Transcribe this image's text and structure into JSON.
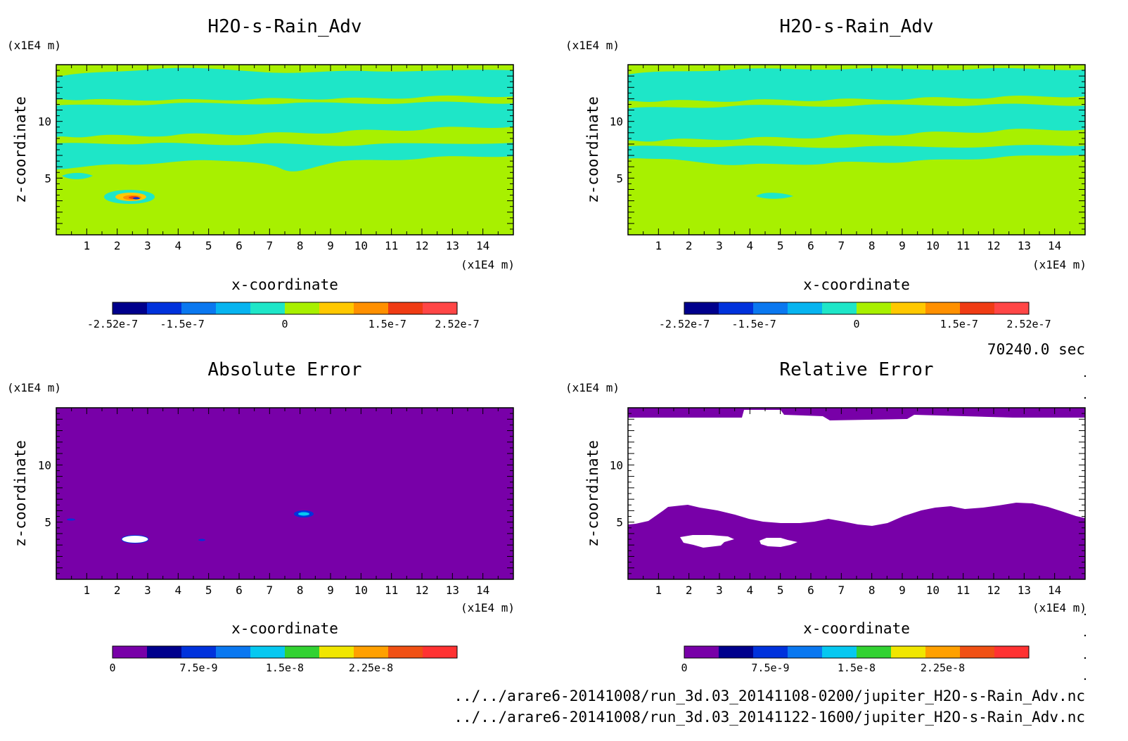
{
  "chart_data": [
    {
      "type": "heatmap",
      "title": "H2O-s-Rain_Adv",
      "xlabel": "x-coordinate",
      "ylabel": "z-coordinate",
      "x_unit": "(x1E4 m)",
      "y_unit": "(x1E4 m)",
      "xlim": [
        0,
        15
      ],
      "ylim": [
        0,
        15
      ],
      "x_ticks": [
        "1",
        "2",
        "3",
        "4",
        "5",
        "6",
        "7",
        "8",
        "9",
        "10",
        "11",
        "12",
        "13",
        "14"
      ],
      "y_ticks": [
        "5",
        "10"
      ],
      "colorbar": {
        "range": [
          -2.52e-07,
          2.52e-07
        ],
        "tick_values": [
          -2.52e-07,
          -1.5e-07,
          0,
          1.5e-07,
          2.52e-07
        ],
        "tick_labels": [
          "-2.52e-7",
          "-1.5e-7",
          "0",
          "1.5e-7",
          "2.52e-7"
        ],
        "colors": [
          "#00008c",
          "#0032dc",
          "#0a78f0",
          "#06b4f0",
          "#1ee6c8",
          "#a8f000",
          "#ffc800",
          "#ff9000",
          "#f03c14",
          "#ff4646"
        ]
      },
      "field": {
        "background_value": 0,
        "background_color": "#a8f000",
        "band_color": "#1ee6c8",
        "band_z_range": [
          6,
          14.8
        ],
        "feature": {
          "x": 2.6,
          "z": 3.5,
          "max_value": 2.52e-07
        }
      }
    },
    {
      "type": "heatmap",
      "title": "H2O-s-Rain_Adv",
      "xlabel": "x-coordinate",
      "ylabel": "z-coordinate",
      "x_unit": "(x1E4 m)",
      "y_unit": "(x1E4 m)",
      "xlim": [
        0,
        15
      ],
      "ylim": [
        0,
        15
      ],
      "x_ticks": [
        "1",
        "2",
        "3",
        "4",
        "5",
        "6",
        "7",
        "8",
        "9",
        "10",
        "11",
        "12",
        "13",
        "14"
      ],
      "y_ticks": [
        "5",
        "10"
      ],
      "colorbar": {
        "range": [
          -2.52e-07,
          2.52e-07
        ],
        "tick_values": [
          -2.52e-07,
          -1.5e-07,
          0,
          1.5e-07,
          2.52e-07
        ],
        "tick_labels": [
          "-2.52e-7",
          "-1.5e-7",
          "0",
          "1.5e-7",
          "2.52e-7"
        ],
        "colors": [
          "#00008c",
          "#0032dc",
          "#0a78f0",
          "#06b4f0",
          "#1ee6c8",
          "#a8f000",
          "#ffc800",
          "#ff9000",
          "#f03c14",
          "#ff4646"
        ]
      },
      "field": {
        "background_value": 0,
        "background_color": "#a8f000",
        "band_color": "#1ee6c8",
        "band_z_range": [
          6.5,
          14.8
        ],
        "feature": {
          "x": 5.2,
          "z": 3.4,
          "max_value": 0
        }
      }
    },
    {
      "type": "heatmap",
      "title": "Absolute Error",
      "xlabel": "x-coordinate",
      "ylabel": "z-coordinate",
      "x_unit": "(x1E4 m)",
      "y_unit": "(x1E4 m)",
      "xlim": [
        0,
        15
      ],
      "ylim": [
        0,
        15
      ],
      "x_ticks": [
        "1",
        "2",
        "3",
        "4",
        "5",
        "6",
        "7",
        "8",
        "9",
        "10",
        "11",
        "12",
        "13",
        "14"
      ],
      "y_ticks": [
        "5",
        "10"
      ],
      "colorbar": {
        "range": [
          0,
          3e-08
        ],
        "tick_values": [
          0,
          7.5e-09,
          1.5e-08,
          2.25e-08
        ],
        "tick_labels": [
          "0",
          "7.5e-9",
          "1.5e-8",
          "2.25e-8"
        ],
        "colors": [
          "#7800a8",
          "#00008c",
          "#0032dc",
          "#0a78f0",
          "#06c8f0",
          "#32d232",
          "#f0e600",
          "#ffa000",
          "#f05014",
          "#ff3232"
        ]
      },
      "field": {
        "background_value": 0,
        "background_color": "#7800a8",
        "features": [
          {
            "x": 2.6,
            "z": 3.5,
            "kind": "out-of-range"
          },
          {
            "x": 8.1,
            "z": 5.6,
            "kind": "high"
          },
          {
            "x": 0.5,
            "z": 5.2,
            "kind": "low"
          },
          {
            "x": 4.8,
            "z": 3.4,
            "kind": "low"
          }
        ]
      }
    },
    {
      "type": "heatmap",
      "title": "Relative Error",
      "xlabel": "x-coordinate",
      "ylabel": "z-coordinate",
      "x_unit": "(x1E4 m)",
      "y_unit": "(x1E4 m)",
      "xlim": [
        0,
        15
      ],
      "ylim": [
        0,
        15
      ],
      "x_ticks": [
        "1",
        "2",
        "3",
        "4",
        "5",
        "6",
        "7",
        "8",
        "9",
        "10",
        "11",
        "12",
        "13",
        "14"
      ],
      "y_ticks": [
        "5",
        "10"
      ],
      "colorbar": {
        "range": [
          0,
          3e-08
        ],
        "tick_values": [
          0,
          7.5e-09,
          1.5e-08,
          2.25e-08
        ],
        "tick_labels": [
          "0",
          "7.5e-9",
          "1.5e-8",
          "2.25e-8"
        ],
        "colors": [
          "#7800a8",
          "#00008c",
          "#0032dc",
          "#0a78f0",
          "#06c8f0",
          "#32d232",
          "#f0e600",
          "#ffa000",
          "#f05014",
          "#ff3232"
        ]
      },
      "field": {
        "background_value": 0,
        "background_color": "#7800a8",
        "undefined_color": "#ffffff",
        "undefined_z_range": [
          5,
          14.6
        ],
        "undefined_patches": [
          {
            "x": 2.4,
            "z": 3.5
          },
          {
            "x": 5.0,
            "z": 3.2
          }
        ]
      }
    }
  ],
  "time_label": "70240.0 sec",
  "files": [
    "../../arare6-20141008/run_3d.03_20141108-0200/jupiter_H2O-s-Rain_Adv.nc",
    "../../arare6-20141008/run_3d.03_20141122-1600/jupiter_H2O-s-Rain_Adv.nc"
  ]
}
